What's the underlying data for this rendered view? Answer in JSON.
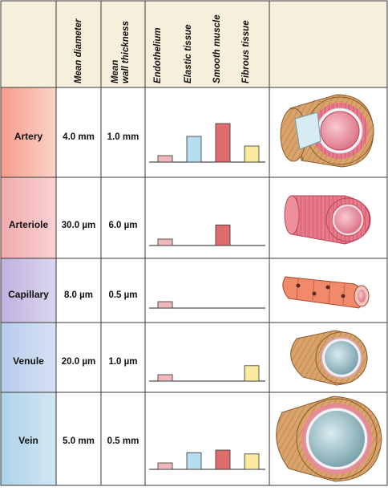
{
  "colors": {
    "header_bg": "#f6efdc",
    "endothelium": "#efb8bb",
    "elastic": "#b5dcef",
    "smooth_muscle": "#e06d6d",
    "fibrous": "#fbe9a0",
    "artery_bg": "#f6a79a",
    "arteriole_bg": "#f3b7b7",
    "capillary_bg": "#c8c0e3",
    "venule_bg": "#c4d5ee",
    "vein_bg": "#bcd9ec"
  },
  "headers": {
    "mean_diameter": "Mean diameter",
    "mean_wall_line1": "Mean",
    "mean_wall_line2": "wall thickness",
    "endothelium": "Endothelium",
    "elastic_tissue": "Elastic tissue",
    "smooth_muscle": "Smooth muscle",
    "fibrous_tissue": "Fibrous tissue"
  },
  "vessels": [
    {
      "name": "Artery",
      "diameter": "4.0 mm",
      "wall": "1.0 mm",
      "icon": "artery-cross-section",
      "tissue": {
        "endothelium": 1,
        "elastic": 4,
        "smooth_muscle": 6,
        "fibrous": 2.5
      }
    },
    {
      "name": "Arteriole",
      "diameter": "30.0 µm",
      "wall": "6.0 µm",
      "icon": "arteriole-cross-section",
      "tissue": {
        "endothelium": 1,
        "elastic": 0,
        "smooth_muscle": 3.2,
        "fibrous": 0
      }
    },
    {
      "name": "Capillary",
      "diameter": "8.0 µm",
      "wall": "0.5 µm",
      "icon": "capillary-tube",
      "tissue": {
        "endothelium": 1,
        "elastic": 0,
        "smooth_muscle": 0,
        "fibrous": 0
      }
    },
    {
      "name": "Venule",
      "diameter": "20.0 µm",
      "wall": "1.0 µm",
      "icon": "venule-cross-section",
      "tissue": {
        "endothelium": 1,
        "elastic": 0,
        "smooth_muscle": 0,
        "fibrous": 2.4
      }
    },
    {
      "name": "Vein",
      "diameter": "5.0 mm",
      "wall": "0.5 mm",
      "icon": "vein-cross-section",
      "tissue": {
        "endothelium": 1,
        "elastic": 2.6,
        "smooth_muscle": 3,
        "fibrous": 2.4
      }
    }
  ]
}
